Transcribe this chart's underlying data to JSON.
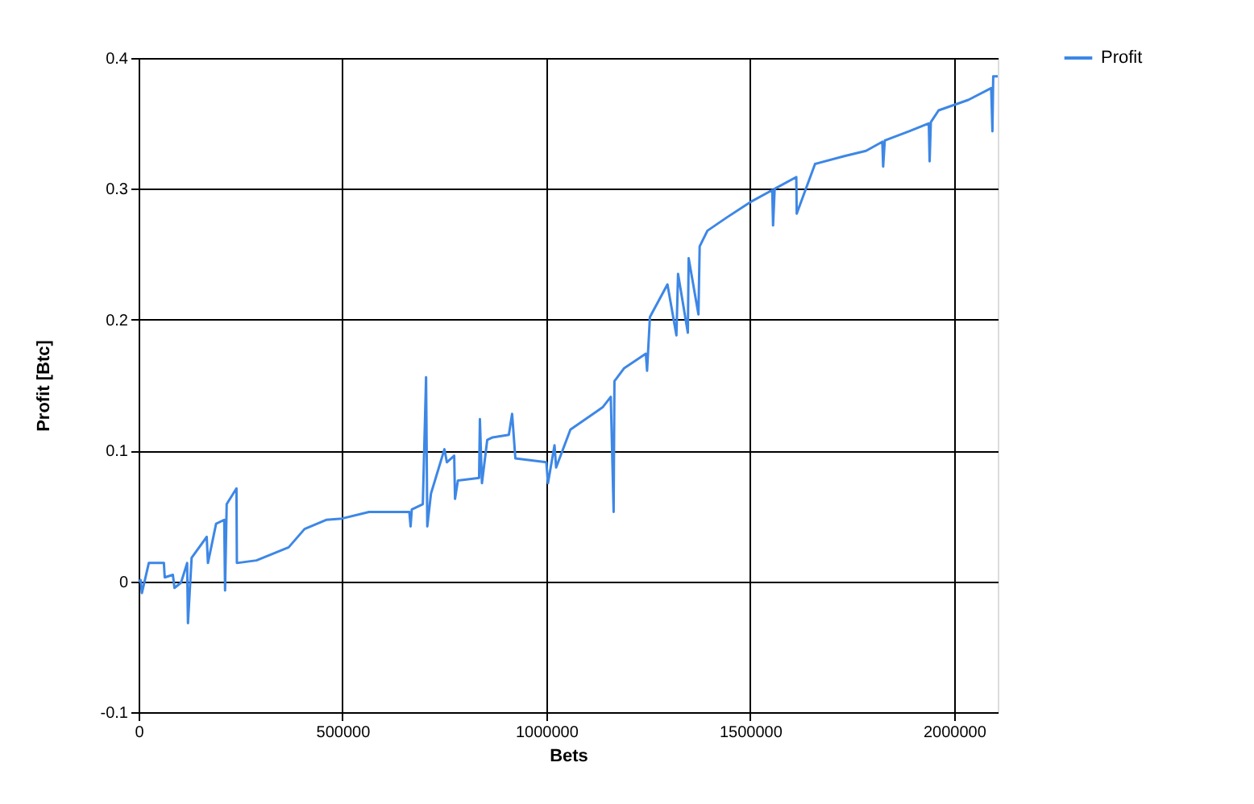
{
  "chart_data": {
    "type": "line",
    "xlabel": "Bets",
    "ylabel": "Profit [Btc]",
    "xlim": [
      0,
      2107000
    ],
    "ylim": [
      -0.1,
      0.4
    ],
    "xticks": [
      0,
      500000,
      1000000,
      1500000,
      2000000
    ],
    "yticks": [
      -0.1,
      0,
      0.1,
      0.2,
      0.3,
      0.4
    ],
    "grid": true,
    "legend": "top right",
    "x": [
      0,
      5000,
      8000,
      25000,
      43000,
      62000,
      64000,
      84000,
      88000,
      104000,
      119000,
      121000,
      130000,
      167000,
      170000,
      190000,
      210000,
      212000,
      216000,
      240000,
      241000,
      289000,
      368000,
      407000,
      460000,
      499000,
      565000,
      605000,
      664000,
      667000,
      670000,
      697000,
      705000,
      708000,
      717000,
      750000,
      756000,
      774000,
      776000,
      783000,
      835000,
      837000,
      842000,
      855000,
      868000,
      908000,
      916000,
      924000,
      1000000,
      1004000,
      1020000,
      1024000,
      1059000,
      1138000,
      1158000,
      1165000,
      1167000,
      1191000,
      1244000,
      1247000,
      1254000,
      1297000,
      1319000,
      1323000,
      1347000,
      1349000,
      1373000,
      1376000,
      1395000,
      1442000,
      1501000,
      1554000,
      1556000,
      1560000,
      1613000,
      1614000,
      1659000,
      1731000,
      1784000,
      1824000,
      1826000,
      1830000,
      1890000,
      1938000,
      1940000,
      1943000,
      1962000,
      2035000,
      2091000,
      2094000,
      2096000,
      2107000
    ],
    "series": [
      {
        "name": "Profit",
        "color": "#3d87e6",
        "values": [
          0,
          0.001,
          -0.009,
          0.014,
          0.014,
          0.014,
          0.003,
          0.005,
          -0.005,
          -0.001,
          0.014,
          -0.032,
          0.018,
          0.034,
          0.014,
          0.044,
          0.047,
          -0.007,
          0.059,
          0.071,
          0.014,
          0.016,
          0.026,
          0.04,
          0.047,
          0.048,
          0.053,
          0.053,
          0.053,
          0.042,
          0.055,
          0.059,
          0.156,
          0.042,
          0.067,
          0.101,
          0.091,
          0.096,
          0.063,
          0.077,
          0.079,
          0.124,
          0.075,
          0.108,
          0.11,
          0.112,
          0.128,
          0.094,
          0.091,
          0.075,
          0.104,
          0.087,
          0.116,
          0.133,
          0.141,
          0.053,
          0.153,
          0.163,
          0.174,
          0.161,
          0.202,
          0.227,
          0.188,
          0.235,
          0.19,
          0.247,
          0.204,
          0.256,
          0.268,
          0.278,
          0.29,
          0.299,
          0.272,
          0.3,
          0.309,
          0.281,
          0.319,
          0.325,
          0.329,
          0.336,
          0.317,
          0.337,
          0.344,
          0.35,
          0.321,
          0.351,
          0.36,
          0.368,
          0.377,
          0.344,
          0.386,
          0.386
        ]
      }
    ]
  }
}
